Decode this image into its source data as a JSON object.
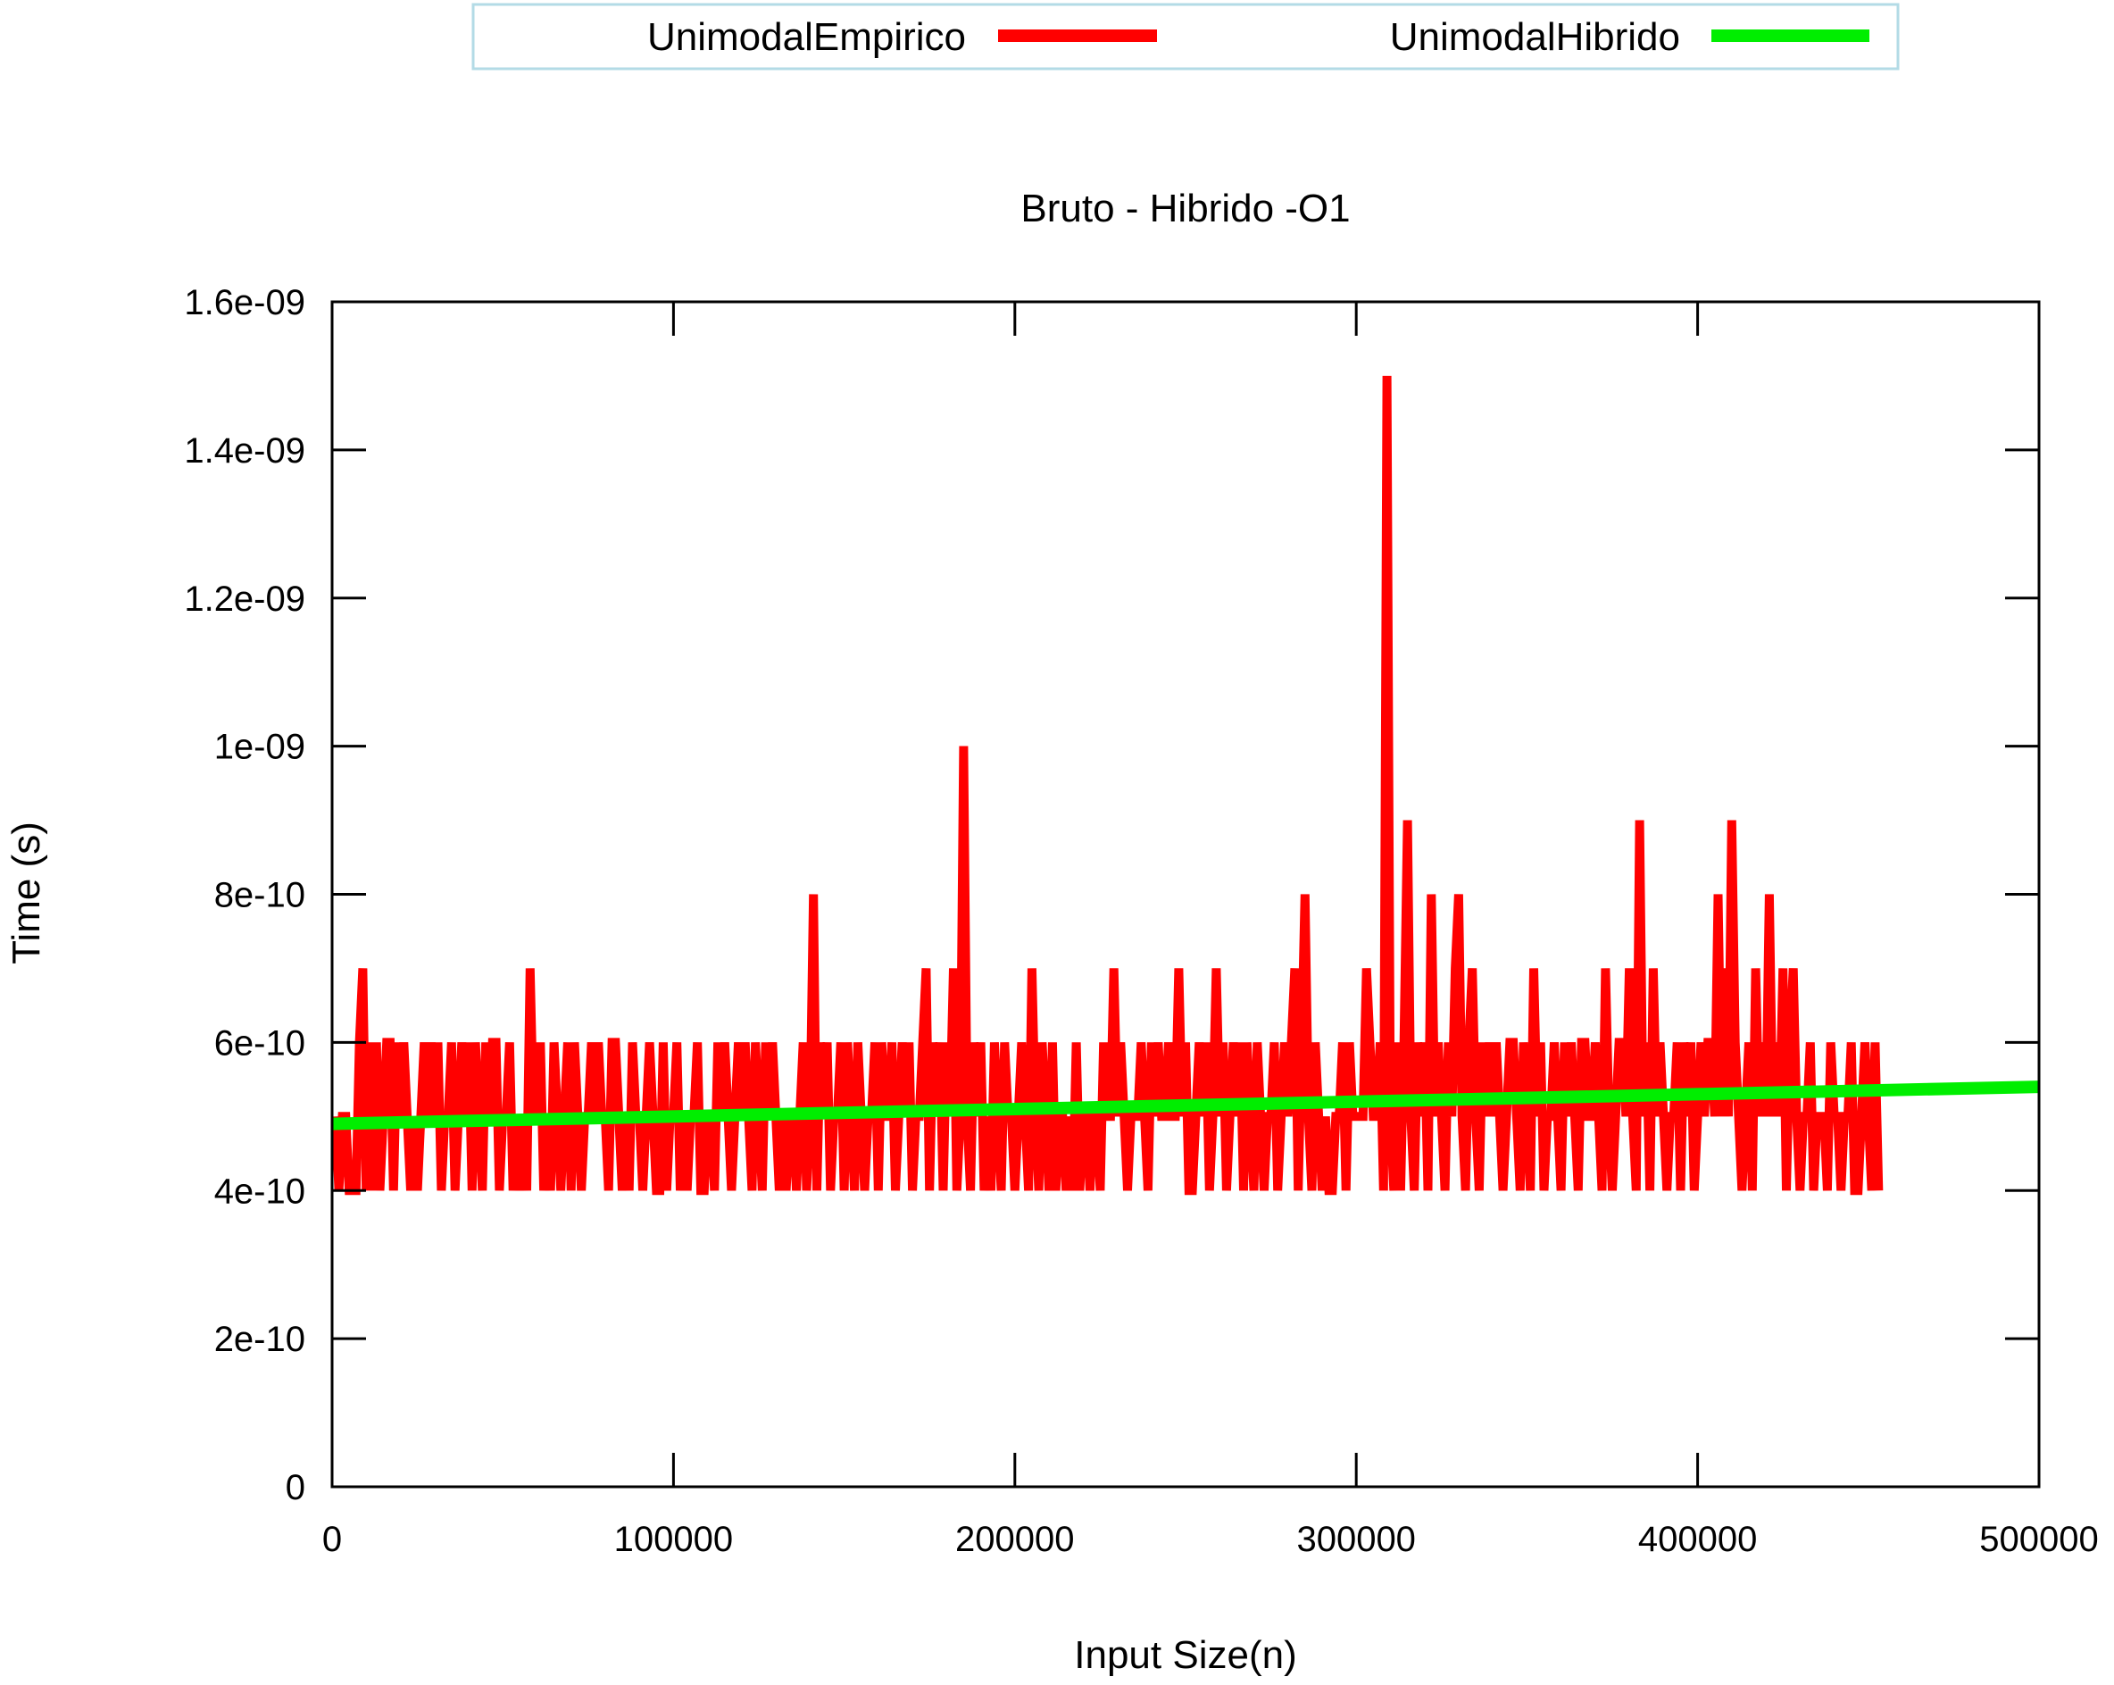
{
  "chart_data": {
    "type": "line",
    "title": "Bruto - Hibrido -O1",
    "xlabel": "Input Size(n)",
    "ylabel": "Time (s)",
    "xlim": [
      0,
      500000
    ],
    "ylim": [
      0,
      1.6e-09
    ],
    "x_ticks": [
      {
        "value": 0,
        "label": "0"
      },
      {
        "value": 100000,
        "label": "100000"
      },
      {
        "value": 200000,
        "label": "200000"
      },
      {
        "value": 300000,
        "label": "300000"
      },
      {
        "value": 400000,
        "label": "400000"
      },
      {
        "value": 500000,
        "label": "500000"
      }
    ],
    "y_ticks": [
      {
        "value": 0,
        "label": "0"
      },
      {
        "value": 2e-10,
        "label": "2e-10"
      },
      {
        "value": 4e-10,
        "label": "4e-10"
      },
      {
        "value": 6e-10,
        "label": "6e-10"
      },
      {
        "value": 8e-10,
        "label": "8e-10"
      },
      {
        "value": 1e-09,
        "label": "1e-09"
      },
      {
        "value": 1.2e-09,
        "label": "1.2e-09"
      },
      {
        "value": 1.4e-09,
        "label": "1.4e-09"
      },
      {
        "value": 1.6e-09,
        "label": "1.6e-09"
      }
    ],
    "grid": false,
    "legend_position": "top-center",
    "series": [
      {
        "name": "UnimodalEmpirico",
        "color": "#ff0000",
        "x_start": 1000,
        "x_step": 1000,
        "values": [
          5e-10,
          4e-10,
          5e-10,
          5e-10,
          4e-10,
          4e-10,
          4e-10,
          6e-10,
          7e-10,
          4e-10,
          6e-10,
          4e-10,
          6e-10,
          4e-10,
          5e-10,
          6e-10,
          6e-10,
          4e-10,
          6e-10,
          5e-10,
          6e-10,
          5e-10,
          4e-10,
          5e-10,
          4e-10,
          5e-10,
          6e-10,
          5e-10,
          6e-10,
          5e-10,
          6e-10,
          4e-10,
          5e-10,
          5e-10,
          6e-10,
          4e-10,
          5e-10,
          6e-10,
          5e-10,
          6e-10,
          4e-10,
          6e-10,
          5e-10,
          4e-10,
          6e-10,
          5e-10,
          6e-10,
          6e-10,
          4e-10,
          5e-10,
          5e-10,
          6e-10,
          4e-10,
          5e-10,
          4e-10,
          5e-10,
          4e-10,
          7e-10,
          5e-10,
          5e-10,
          6e-10,
          4e-10,
          5e-10,
          4e-10,
          6e-10,
          5e-10,
          4e-10,
          5e-10,
          6e-10,
          4e-10,
          6e-10,
          5e-10,
          4e-10,
          5e-10,
          5e-10,
          6e-10,
          5e-10,
          6e-10,
          5e-10,
          5e-10,
          4e-10,
          6e-10,
          6e-10,
          5e-10,
          4e-10,
          5e-10,
          4e-10,
          6e-10,
          5e-10,
          5e-10,
          4e-10,
          5e-10,
          6e-10,
          5e-10,
          4e-10,
          4e-10,
          6e-10,
          4e-10,
          5e-10,
          5e-10,
          6e-10,
          4e-10,
          5e-10,
          4e-10,
          5e-10,
          5e-10,
          6e-10,
          4e-10,
          4e-10,
          5e-10,
          5e-10,
          4e-10,
          6e-10,
          5e-10,
          6e-10,
          5e-10,
          4e-10,
          5e-10,
          6e-10,
          5e-10,
          6e-10,
          5e-10,
          4e-10,
          6e-10,
          5e-10,
          4e-10,
          6e-10,
          5e-10,
          6e-10,
          5e-10,
          4e-10,
          5e-10,
          4e-10,
          5e-10,
          5e-10,
          4e-10,
          5e-10,
          6e-10,
          4e-10,
          5e-10,
          8e-10,
          4e-10,
          6e-10,
          5e-10,
          6e-10,
          4e-10,
          5e-10,
          5e-10,
          6e-10,
          4e-10,
          6e-10,
          5e-10,
          4e-10,
          6e-10,
          5e-10,
          4e-10,
          5e-10,
          5e-10,
          6e-10,
          4e-10,
          6e-10,
          5e-10,
          5e-10,
          6e-10,
          4e-10,
          5e-10,
          6e-10,
          5e-10,
          6e-10,
          4e-10,
          5e-10,
          5e-10,
          6e-10,
          7e-10,
          4e-10,
          6e-10,
          5e-10,
          6e-10,
          4e-10,
          6e-10,
          5e-10,
          7e-10,
          4e-10,
          5e-10,
          1e-09,
          5e-10,
          4e-10,
          6e-10,
          5e-10,
          6e-10,
          4e-10,
          5e-10,
          4e-10,
          6e-10,
          5e-10,
          4e-10,
          6e-10,
          5e-10,
          5e-10,
          4e-10,
          5e-10,
          6e-10,
          5e-10,
          4e-10,
          7e-10,
          5e-10,
          4e-10,
          6e-10,
          5e-10,
          4e-10,
          6e-10,
          4e-10,
          5e-10,
          5e-10,
          4e-10,
          5e-10,
          4e-10,
          6e-10,
          4e-10,
          5e-10,
          5e-10,
          4e-10,
          5e-10,
          5e-10,
          4e-10,
          6e-10,
          5e-10,
          5e-10,
          7e-10,
          5e-10,
          6e-10,
          5e-10,
          4e-10,
          5e-10,
          5e-10,
          5e-10,
          6e-10,
          5e-10,
          4e-10,
          6e-10,
          5e-10,
          6e-10,
          5e-10,
          5e-10,
          6e-10,
          5e-10,
          5e-10,
          7e-10,
          5e-10,
          6e-10,
          4e-10,
          4e-10,
          5e-10,
          6e-10,
          5e-10,
          6e-10,
          4e-10,
          5e-10,
          7e-10,
          5e-10,
          6e-10,
          4e-10,
          5e-10,
          6e-10,
          5e-10,
          6e-10,
          4e-10,
          6e-10,
          5e-10,
          4e-10,
          6e-10,
          5e-10,
          4e-10,
          5e-10,
          5e-10,
          6e-10,
          4e-10,
          5e-10,
          6e-10,
          5e-10,
          6e-10,
          7e-10,
          4e-10,
          6e-10,
          8e-10,
          5e-10,
          4e-10,
          6e-10,
          5e-10,
          4e-10,
          5e-10,
          4e-10,
          4e-10,
          5e-10,
          5e-10,
          6e-10,
          4e-10,
          6e-10,
          5e-10,
          5e-10,
          5e-10,
          5e-10,
          7e-10,
          6e-10,
          5e-10,
          5e-10,
          6e-10,
          4e-10,
          1.5e-09,
          5e-10,
          4e-10,
          6e-10,
          4e-10,
          6e-10,
          9e-10,
          5e-10,
          4e-10,
          6e-10,
          5e-10,
          6e-10,
          4e-10,
          8e-10,
          5e-10,
          6e-10,
          5e-10,
          4e-10,
          6e-10,
          5e-10,
          7e-10,
          8e-10,
          5e-10,
          4e-10,
          6e-10,
          7e-10,
          5e-10,
          4e-10,
          6e-10,
          5e-10,
          6e-10,
          5e-10,
          6e-10,
          5e-10,
          4e-10,
          5e-10,
          6e-10,
          6e-10,
          5e-10,
          4e-10,
          6e-10,
          5e-10,
          4e-10,
          7e-10,
          5e-10,
          6e-10,
          4e-10,
          5e-10,
          5e-10,
          6e-10,
          5e-10,
          4e-10,
          6e-10,
          5e-10,
          6e-10,
          5e-10,
          4e-10,
          6e-10,
          6e-10,
          5e-10,
          5e-10,
          6e-10,
          5e-10,
          4e-10,
          7e-10,
          5e-10,
          4e-10,
          5e-10,
          6e-10,
          6e-10,
          5e-10,
          7e-10,
          5e-10,
          4e-10,
          9e-10,
          5e-10,
          6e-10,
          4e-10,
          7e-10,
          5e-10,
          6e-10,
          5e-10,
          4e-10,
          5e-10,
          5e-10,
          6e-10,
          4e-10,
          6e-10,
          5e-10,
          6e-10,
          4e-10,
          5e-10,
          6e-10,
          5e-10,
          6e-10,
          6e-10,
          5e-10,
          8e-10,
          5e-10,
          7e-10,
          5e-10,
          9e-10,
          6e-10,
          5e-10,
          4e-10,
          5e-10,
          6e-10,
          4e-10,
          7e-10,
          5e-10,
          6e-10,
          5e-10,
          8e-10,
          5e-10,
          6e-10,
          5e-10,
          7e-10,
          4e-10,
          6e-10,
          7e-10,
          5e-10,
          4e-10,
          5e-10,
          5e-10,
          6e-10,
          4e-10,
          5e-10,
          5e-10,
          5e-10,
          4e-10,
          6e-10,
          5e-10,
          5e-10,
          4e-10,
          5e-10,
          5e-10,
          6e-10,
          4e-10,
          4e-10,
          5e-10,
          6e-10,
          5e-10,
          4e-10,
          6e-10,
          4e-10
        ]
      },
      {
        "name": "UnimodalHibrido",
        "color": "#00ee00",
        "x": [
          0,
          500000
        ],
        "values": [
          4.9e-10,
          5.4e-10
        ]
      }
    ]
  }
}
